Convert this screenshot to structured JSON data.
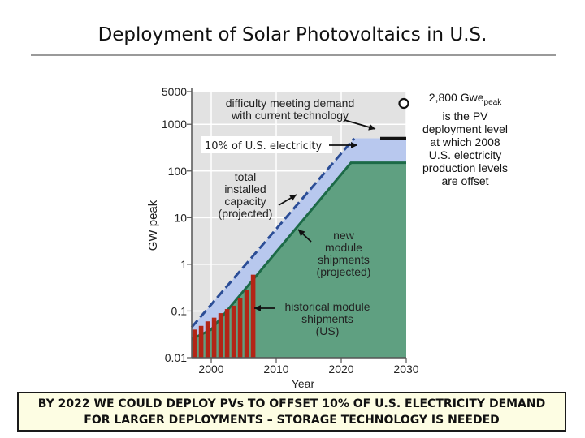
{
  "slide": {
    "title": "Deployment of Solar Photovoltaics in U.S.",
    "note": {
      "line1_prefix": "2,800 Gwe",
      "line1_sub": "peak",
      "lines": [
        "is the PV",
        "deployment level",
        "at which 2008",
        "U.S. electricity",
        "production levels",
        "are offset"
      ]
    },
    "banner": {
      "line1": "BY 2022 WE COULD DEPLOY PVs TO OFFSET 10% OF U.S. ELECTRICITY DEMAND",
      "line2": "FOR LARGER DEPLOYMENTS – STORAGE TECHNOLOGY IS NEEDED"
    }
  },
  "colors": {
    "installed_fill": "#b8c8ee",
    "shipments_fill": "#5fa081",
    "shipments_line": "#1c6a47",
    "dashed_line": "#2b4d96",
    "historical_bar": "#b32516",
    "plot_bg": "#e2e2e2",
    "grid": "#ffffff",
    "arrow": "#111111"
  },
  "chart_data": {
    "type": "area",
    "xlabel": "Year",
    "ylabel": "GW peak",
    "xlim": [
      1997,
      2030
    ],
    "ylim": [
      0.01,
      5000
    ],
    "yscale": "log",
    "x_ticks": [
      2000,
      2010,
      2020,
      2030
    ],
    "y_ticks": [
      0.01,
      0.1,
      1,
      10,
      100,
      1000,
      5000
    ],
    "y_tick_labels": [
      "0.01",
      "0.1",
      "1",
      "10",
      "100",
      "1000",
      "5000"
    ],
    "series": [
      {
        "name": "total installed capacity (projected)",
        "style": "area-dashed",
        "points": [
          [
            1997,
            0.045
          ],
          [
            2022,
            500
          ],
          [
            2030,
            500
          ]
        ]
      },
      {
        "name": "new module shipments (projected)",
        "style": "area-line",
        "points": [
          [
            1997,
            0.025
          ],
          [
            2000,
            0.04
          ],
          [
            2021.5,
            150
          ],
          [
            2030,
            150
          ]
        ]
      },
      {
        "name": "historical module shipments (US)",
        "style": "bars",
        "x": [
          1997,
          1998,
          1999,
          2000,
          2001,
          2002,
          2003,
          2004,
          2005,
          2006
        ],
        "values": [
          0.04,
          0.048,
          0.06,
          0.072,
          0.09,
          0.11,
          0.13,
          0.19,
          0.28,
          0.6
        ]
      }
    ],
    "reference_lines": [
      {
        "label": "10% of U.S. electricity",
        "value": 500,
        "x_from": 2026,
        "x_to": 2030
      }
    ],
    "markers": [
      {
        "label": "2,800 Gwe peak",
        "x": 2030,
        "value": 2800
      }
    ],
    "annotations": [
      {
        "lines": [
          "difficulty meeting demand",
          "with current technology"
        ]
      },
      {
        "lines": [
          "10% of U.S. electricity"
        ]
      },
      {
        "lines": [
          "total",
          "installed",
          "capacity",
          "(projected)"
        ]
      },
      {
        "lines": [
          "new",
          "module",
          "shipments",
          "(projected)"
        ]
      },
      {
        "lines": [
          "historical module",
          "shipments",
          "(US)"
        ]
      }
    ]
  }
}
